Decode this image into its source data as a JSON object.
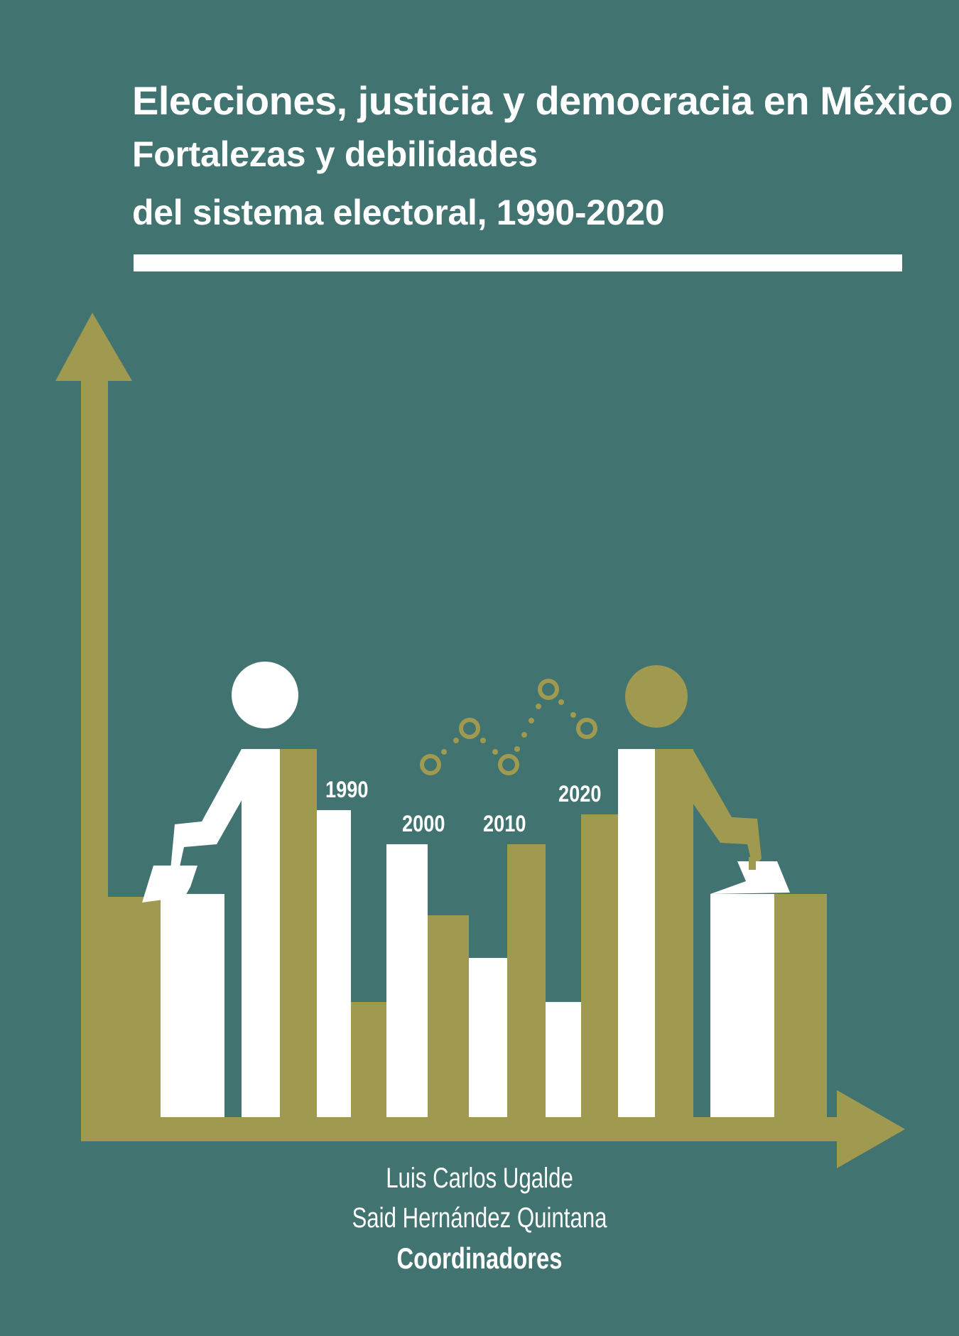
{
  "book": {
    "title": "Elecciones, justicia y democracia en México",
    "subtitle_line1": "Fortalezas y debilidades",
    "subtitle_line2": "del sistema electoral, 1990-2020",
    "authors": [
      "Luis Carlos Ugalde",
      "Said Hernández Quintana"
    ],
    "role": "Coordinadores"
  },
  "illustration": {
    "year_labels": [
      "1990",
      "2000",
      "2010",
      "2020"
    ],
    "colors": {
      "background": "#417370",
      "olive": "#A09A50",
      "white": "#FFFFFF"
    },
    "icons": [
      "axis-arrow-icon",
      "voter-figure-icon",
      "ballot-box-icon",
      "dotted-line-icon"
    ]
  }
}
